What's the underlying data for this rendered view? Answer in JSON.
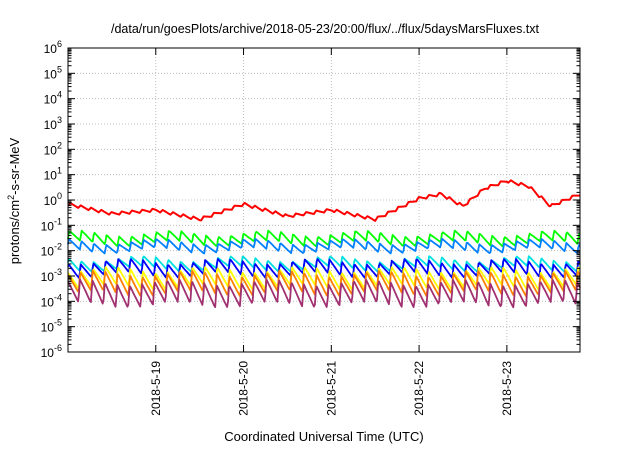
{
  "chart_data": {
    "type": "line",
    "title": "/data/run/goesPlots/archive/2018-05-23/20:00/flux/../flux/5daysMarsFluxes.txt",
    "xlabel": "Coordinated Universal Time (UTC)",
    "ylabel_parts": {
      "pre": "protons/cm",
      "sup": "2",
      "post": "-s-sr-MeV"
    },
    "yscale": "log",
    "ylim_exp": [
      -6,
      6
    ],
    "y_ticks": [
      {
        "base": "10",
        "exp": "-6"
      },
      {
        "base": "10",
        "exp": "-5"
      },
      {
        "base": "10",
        "exp": "-4"
      },
      {
        "base": "10",
        "exp": "-3"
      },
      {
        "base": "10",
        "exp": "-2"
      },
      {
        "base": "10",
        "exp": "-1"
      },
      {
        "base": "10",
        "exp": "0"
      },
      {
        "base": "10",
        "exp": "1"
      },
      {
        "base": "10",
        "exp": "2"
      },
      {
        "base": "10",
        "exp": "3"
      },
      {
        "base": "10",
        "exp": "4"
      },
      {
        "base": "10",
        "exp": "5"
      },
      {
        "base": "10",
        "exp": "6"
      }
    ],
    "xlim": [
      "2018-05-18 00:00",
      "2018-05-23 20:00"
    ],
    "x_ticks": [
      "2018-5-19",
      "2018-5-20",
      "2018-5-21",
      "2018-5-22",
      "2018-5-23"
    ],
    "grid": true,
    "series": [
      {
        "color": "#ff0000",
        "x": [
          "2018-05-18 00:00",
          "2018-05-18 12:00",
          "2018-05-19 00:00",
          "2018-05-19 12:00",
          "2018-05-20 00:00",
          "2018-05-20 12:00",
          "2018-05-21 00:00",
          "2018-05-21 12:00",
          "2018-05-22 00:00",
          "2018-05-22 06:00",
          "2018-05-22 12:00",
          "2018-05-22 18:00",
          "2018-05-23 00:00",
          "2018-05-23 06:00",
          "2018-05-23 12:00",
          "2018-05-23 20:00"
        ],
        "y": [
          0.6,
          0.25,
          0.35,
          0.15,
          0.6,
          0.2,
          0.35,
          0.15,
          1.0,
          1.5,
          0.5,
          2.5,
          5.0,
          3.0,
          0.5,
          1.5
        ]
      },
      {
        "color": "#00ff00",
        "base": 0.03,
        "amp": 0.4
      },
      {
        "color": "#0080ff",
        "base": 0.015,
        "amp": 0.35
      },
      {
        "color": "#00e0e0",
        "base": 0.003,
        "amp": 0.4
      },
      {
        "color": "#0000ff",
        "base": 0.002,
        "amp": 0.55
      },
      {
        "color": "#ffff00",
        "base": 0.0008,
        "amp": 0.7
      },
      {
        "color": "#ff8000",
        "base": 0.0005,
        "amp": 0.8
      },
      {
        "color": "#a03070",
        "base": 0.0002,
        "amp": 0.9
      }
    ]
  }
}
